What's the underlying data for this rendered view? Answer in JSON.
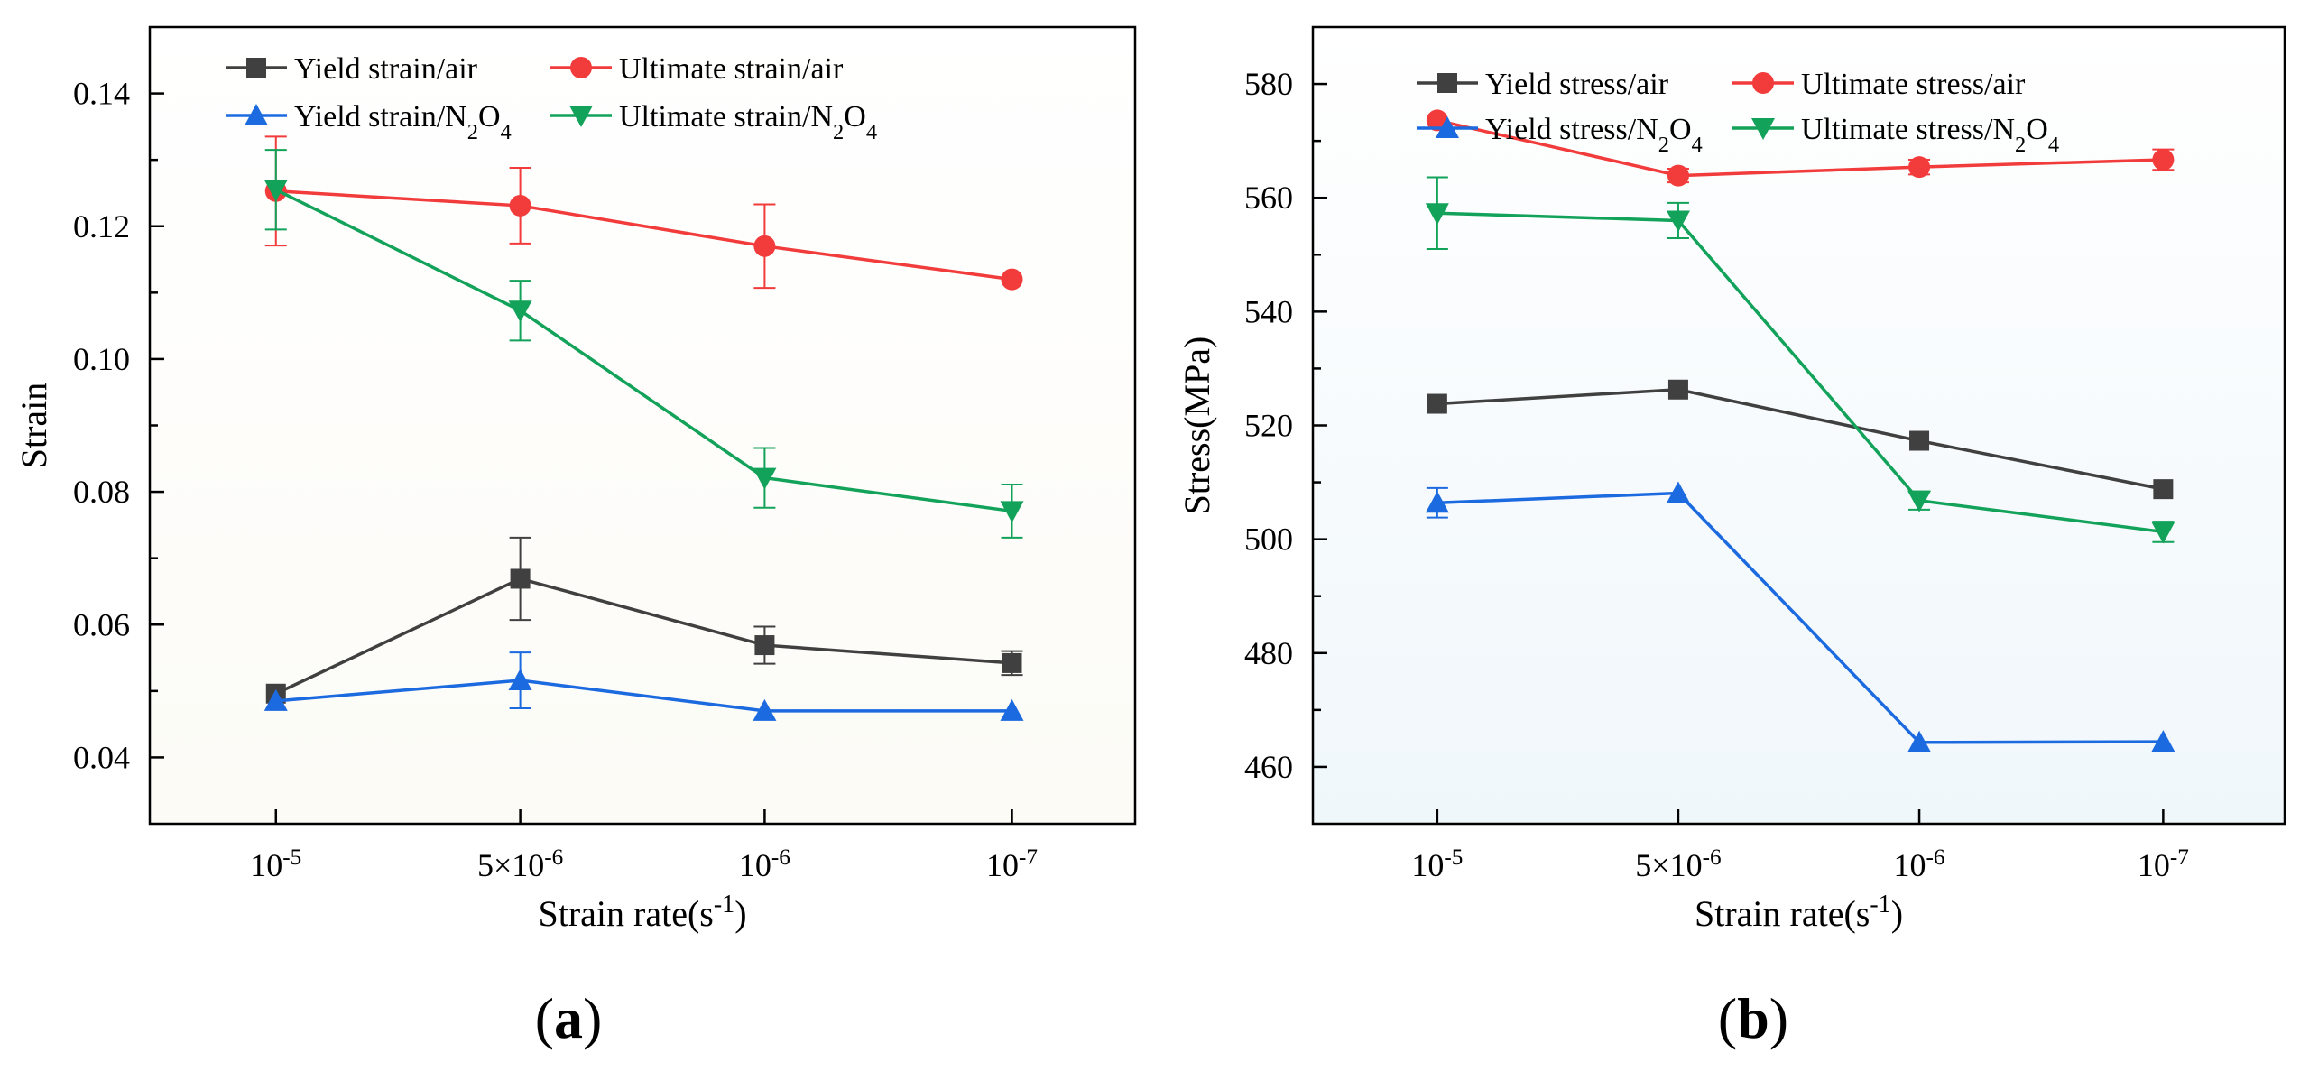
{
  "chart_data": [
    {
      "type": "line",
      "panel_label": "(a)",
      "xlabel": "Strain rate(s-1)",
      "ylabel": "Strain",
      "categories": [
        "10-5",
        "5×10-6",
        "10-6",
        "10-7"
      ],
      "ylim": [
        0.03,
        0.15
      ],
      "yticks": [
        "0.04",
        "0.06",
        "0.08",
        "0.10",
        "0.12",
        "0.14"
      ],
      "grid": false,
      "legend_position": "top",
      "series": [
        {
          "name": "Yield strain/air",
          "color": "#404040",
          "marker": "square",
          "values": [
            0.0496,
            0.0669,
            0.0569,
            0.0542
          ],
          "errors": [
            0.0,
            0.0062,
            0.0028,
            0.0018
          ]
        },
        {
          "name": "Ultimate strain/air",
          "color": "#f23b3b",
          "marker": "circle",
          "values": [
            0.1253,
            0.1231,
            0.117,
            0.112
          ],
          "errors": [
            0.0082,
            0.0057,
            0.0063,
            0.0
          ]
        },
        {
          "name": "Yield strain/N2O4",
          "color": "#1c6ae0",
          "marker": "triangle-up",
          "values": [
            0.0485,
            0.0516,
            0.047,
            0.047
          ],
          "errors": [
            0.0,
            0.0042,
            0.0,
            0.0
          ]
        },
        {
          "name": "Ultimate strain/N2O4",
          "color": "#12a25a",
          "marker": "triangle-down",
          "values": [
            0.1255,
            0.1073,
            0.0821,
            0.0771
          ],
          "errors": [
            0.006,
            0.0045,
            0.0045,
            0.004
          ]
        }
      ]
    },
    {
      "type": "line",
      "panel_label": "(b)",
      "xlabel": "Strain rate(s-1)",
      "ylabel": "Stress(MPa)",
      "categories": [
        "10-5",
        "5×10-6",
        "10-6",
        "10-7"
      ],
      "ylim": [
        450,
        590
      ],
      "yticks": [
        "460",
        "480",
        "500",
        "520",
        "540",
        "560",
        "580"
      ],
      "grid": false,
      "legend_position": "top",
      "series": [
        {
          "name": "Yield stress/air",
          "color": "#404040",
          "marker": "square",
          "values": [
            523.8,
            526.3,
            517.3,
            508.8
          ],
          "errors": [
            0.0,
            0.0,
            0.0,
            0.0
          ]
        },
        {
          "name": "Ultimate stress/air",
          "color": "#f23b3b",
          "marker": "circle",
          "values": [
            573.6,
            563.9,
            565.4,
            566.7
          ],
          "errors": [
            0.0,
            1.2,
            1.3,
            1.8
          ]
        },
        {
          "name": "Yield stress/N2O4",
          "color": "#1c6ae0",
          "marker": "triangle-up",
          "values": [
            506.4,
            508.1,
            464.3,
            464.4
          ],
          "errors": [
            2.6,
            0.0,
            0.0,
            0.0
          ]
        },
        {
          "name": "Ultimate stress/N2O4",
          "color": "#12a25a",
          "marker": "triangle-down",
          "values": [
            557.3,
            556.0,
            506.8,
            501.3
          ],
          "errors": [
            6.3,
            3.1,
            1.6,
            1.8
          ]
        }
      ]
    }
  ]
}
